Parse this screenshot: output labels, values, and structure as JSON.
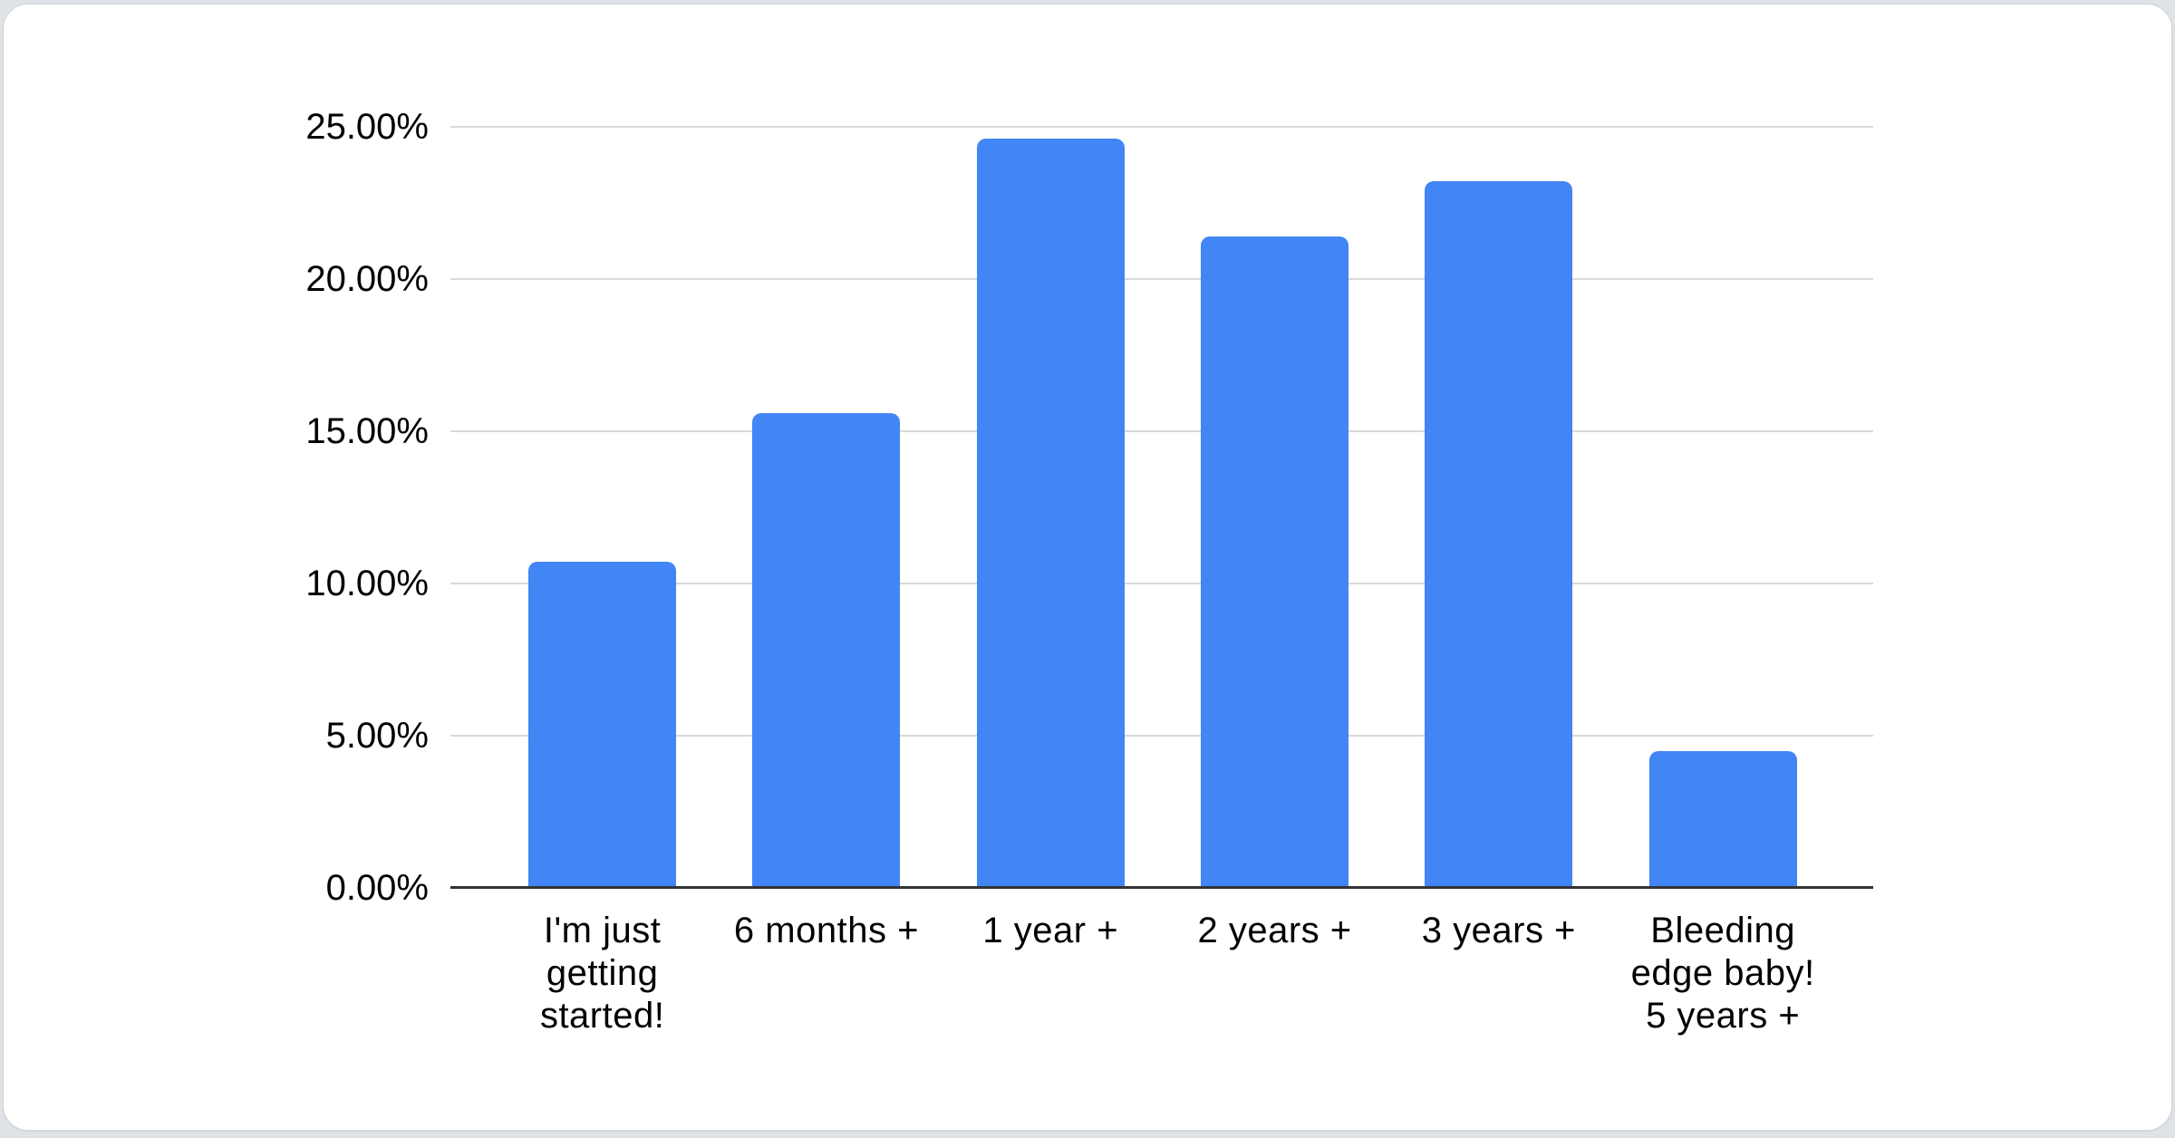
{
  "page": {
    "background_color": "#dfe2e6",
    "card_background_color": "#ffffff"
  },
  "chart_data": {
    "type": "bar",
    "title": "",
    "categories": [
      "I'm just getting started!",
      "6 months +",
      "1 year +",
      "2 years +",
      "3 years +",
      "Bleeding edge baby! 5 years +"
    ],
    "category_label_lines": [
      [
        "I'm just",
        "getting",
        "started!"
      ],
      [
        "6 months +"
      ],
      [
        "1 year +"
      ],
      [
        "2 years +"
      ],
      [
        "3 years +"
      ],
      [
        "Bleeding",
        "edge baby!",
        "5 years +"
      ]
    ],
    "values": [
      10.7,
      15.6,
      24.6,
      21.4,
      23.2,
      4.5
    ],
    "unit": "%",
    "xlabel": "",
    "ylabel": "",
    "ylim": [
      0,
      25
    ],
    "y_ticks": [
      {
        "value": 0,
        "label": "0.00%"
      },
      {
        "value": 5,
        "label": "5.00%"
      },
      {
        "value": 10,
        "label": "10.00%"
      },
      {
        "value": 15,
        "label": "15.00%"
      },
      {
        "value": 20,
        "label": "20.00%"
      },
      {
        "value": 25,
        "label": "25.00%"
      }
    ],
    "grid": true,
    "legend_position": "none",
    "colors": {
      "bar": "#4285f4",
      "gridline": "#d9d9d9",
      "axis_line": "#333333",
      "label_text": "#000000"
    }
  }
}
